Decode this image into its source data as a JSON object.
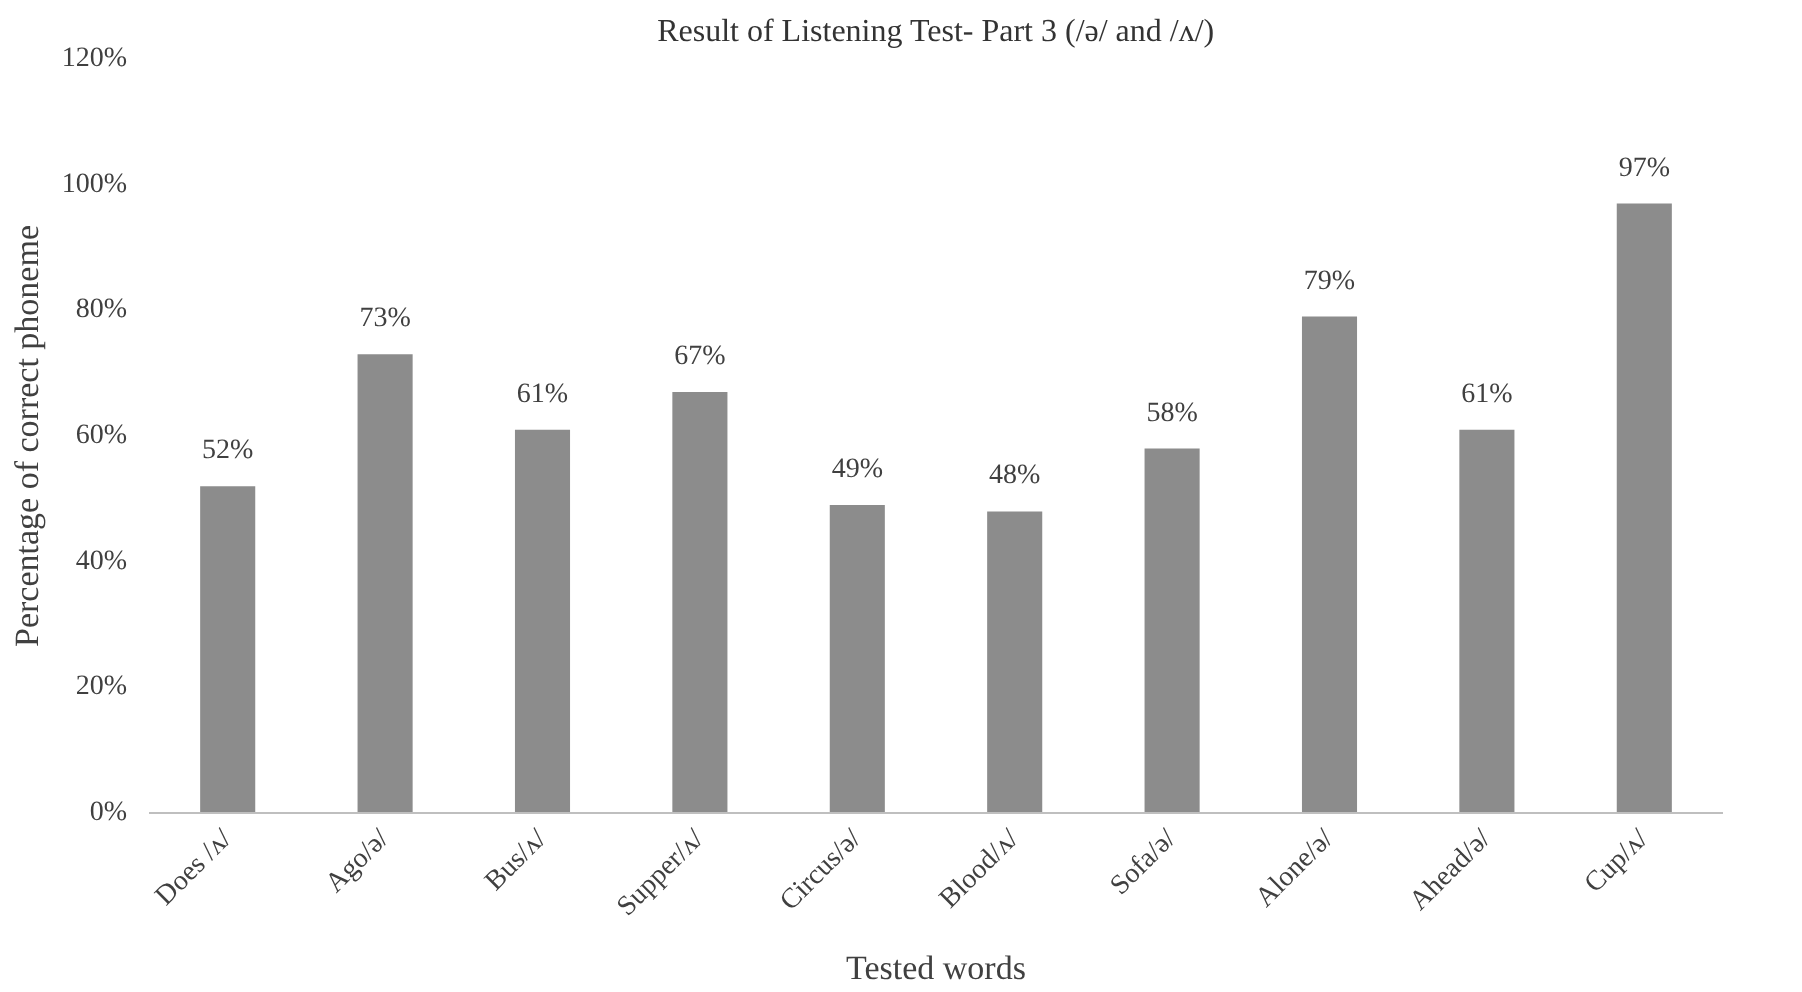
{
  "chart_data": {
    "type": "bar",
    "title": "Result of Listening Test- Part 3 (/ə/ and /ʌ/)",
    "xlabel": "Tested words",
    "ylabel": "Percentage of correct phoneme",
    "categories": [
      "Does /ʌ/",
      "Ago/ə/",
      "Bus/ʌ/",
      "Supper/ʌ/",
      "Circus/ə/",
      "Blood/ʌ/",
      "Sofa/ə/",
      "Alone/ə/",
      "Ahead/ə/",
      "Cup/ʌ/"
    ],
    "values": [
      52,
      73,
      61,
      67,
      49,
      48,
      58,
      79,
      61,
      97
    ],
    "value_labels": [
      "52%",
      "73%",
      "61%",
      "67%",
      "49%",
      "48%",
      "58%",
      "79%",
      "61%",
      "97%"
    ],
    "color": "#8c8c8c",
    "ylim": [
      0,
      120
    ],
    "yticks": [
      {
        "value": 0,
        "label": "0%"
      },
      {
        "value": 20,
        "label": "20%"
      },
      {
        "value": 40,
        "label": "40%"
      },
      {
        "value": 60,
        "label": "60%"
      },
      {
        "value": 80,
        "label": "80%"
      },
      {
        "value": 100,
        "label": "100%"
      },
      {
        "value": 120,
        "label": "120%"
      }
    ],
    "grid": false
  }
}
